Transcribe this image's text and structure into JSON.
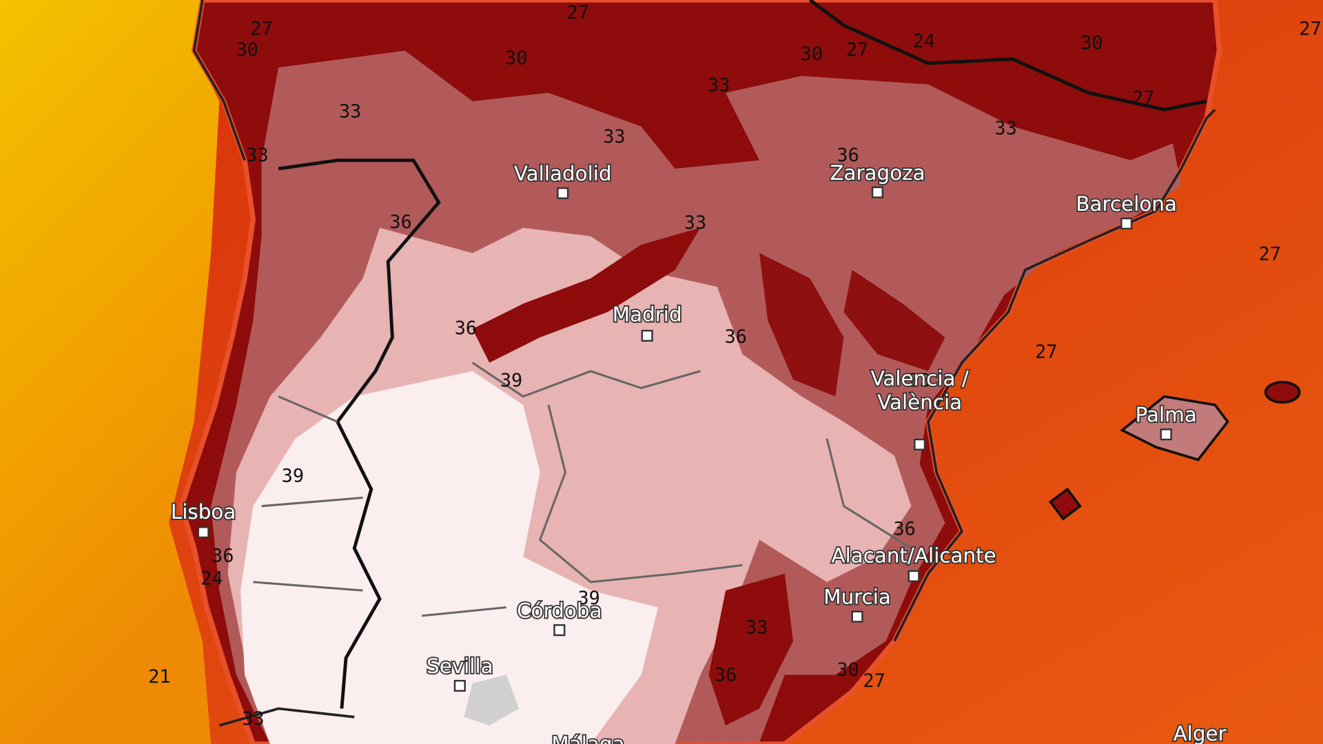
{
  "map": {
    "cities": [
      {
        "lines": [
          "Valladolid"
        ]
      },
      {
        "lines": [
          "Zaragoza"
        ]
      },
      {
        "lines": [
          "Barcelona"
        ]
      },
      {
        "lines": [
          "Madrid"
        ]
      },
      {
        "lines": [
          "Valencia /",
          "València"
        ]
      },
      {
        "lines": [
          "Palma"
        ]
      },
      {
        "lines": [
          "Lisboa"
        ]
      },
      {
        "lines": [
          "Alacant/Alicante"
        ]
      },
      {
        "lines": [
          "Murcia"
        ]
      },
      {
        "lines": [
          "Córdoba"
        ]
      },
      {
        "lines": [
          "Sevilla"
        ]
      },
      {
        "lines": [
          "Málaga"
        ]
      },
      {
        "lines": [
          "Alger"
        ]
      }
    ],
    "isotherm_labels": [
      27,
      30,
      27,
      30,
      30,
      27,
      24,
      30,
      27,
      33,
      33,
      33,
      33,
      36,
      33,
      27,
      36,
      33,
      27,
      36,
      36,
      27,
      39,
      33,
      39,
      36,
      24,
      36,
      39,
      33,
      36,
      30,
      27,
      21,
      33
    ]
  }
}
